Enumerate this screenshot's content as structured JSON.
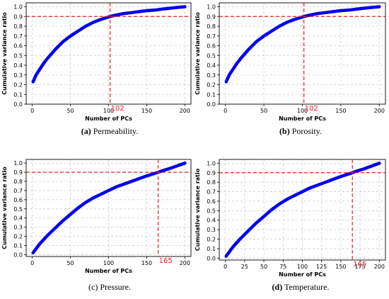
{
  "chart_data": [
    {
      "type": "line",
      "panel_label": "(a)",
      "caption": "Permeability.",
      "xlabel": "Number of PCs",
      "ylabel": "Cumulative variance ratio",
      "xlim": [
        -8,
        208
      ],
      "ylim": [
        0,
        1.04
      ],
      "xticks": [
        "0",
        "50",
        "100",
        "150",
        "200"
      ],
      "yticks": [
        "0.0",
        "0.1",
        "0.2",
        "0.3",
        "0.4",
        "0.5",
        "0.6",
        "0.7",
        "0.8",
        "0.9",
        "1.0"
      ],
      "grid": true,
      "threshold_y": 0.9,
      "threshold_x": 102,
      "threshold_x_label": "102",
      "series": [
        {
          "color": "#0000ee",
          "x": [
            1,
            5,
            10,
            15,
            20,
            30,
            40,
            50,
            60,
            70,
            80,
            90,
            102,
            110,
            120,
            130,
            140,
            150,
            160,
            170,
            180,
            190,
            200
          ],
          "values": [
            0.23,
            0.3,
            0.36,
            0.42,
            0.47,
            0.56,
            0.64,
            0.7,
            0.75,
            0.8,
            0.84,
            0.87,
            0.9,
            0.915,
            0.93,
            0.94,
            0.95,
            0.96,
            0.965,
            0.975,
            0.985,
            0.993,
            1.0
          ]
        }
      ]
    },
    {
      "type": "line",
      "panel_label": "(b)",
      "caption": "Porosity.",
      "xlabel": "Number of PCs",
      "ylabel": "Cumulative variance ratio",
      "xlim": [
        -8,
        208
      ],
      "ylim": [
        0,
        1.04
      ],
      "xticks": [
        "0",
        "50",
        "100",
        "150",
        "200"
      ],
      "yticks": [
        "0.0",
        "0.1",
        "0.2",
        "0.3",
        "0.4",
        "0.5",
        "0.6",
        "0.7",
        "0.8",
        "0.9",
        "1.0"
      ],
      "grid": true,
      "threshold_y": 0.9,
      "threshold_x": 102,
      "threshold_x_label": "102",
      "series": [
        {
          "color": "#0000ee",
          "x": [
            1,
            5,
            10,
            15,
            20,
            30,
            40,
            50,
            60,
            70,
            80,
            90,
            102,
            110,
            120,
            130,
            140,
            150,
            160,
            170,
            180,
            190,
            200
          ],
          "values": [
            0.23,
            0.3,
            0.36,
            0.42,
            0.47,
            0.56,
            0.64,
            0.7,
            0.75,
            0.8,
            0.84,
            0.87,
            0.9,
            0.915,
            0.93,
            0.94,
            0.95,
            0.96,
            0.965,
            0.975,
            0.985,
            0.993,
            1.0
          ]
        }
      ]
    },
    {
      "type": "line",
      "panel_label": "(c)",
      "caption": "Pressure.",
      "xlabel": "Number of PCs",
      "ylabel": "Cumulative variance ratio",
      "xlim": [
        -8,
        208
      ],
      "ylim": [
        -0.02,
        1.04
      ],
      "xticks": [
        "0",
        "50",
        "100",
        "150",
        "200"
      ],
      "yticks": [
        "0.0",
        "0.1",
        "0.2",
        "0.3",
        "0.4",
        "0.5",
        "0.6",
        "0.7",
        "0.8",
        "0.9",
        "1.0"
      ],
      "grid": true,
      "threshold_y": 0.9,
      "threshold_x": 165,
      "threshold_x_label": "165",
      "series": [
        {
          "color": "#0000ee",
          "x": [
            1,
            10,
            20,
            30,
            40,
            50,
            60,
            70,
            80,
            90,
            100,
            110,
            120,
            130,
            140,
            150,
            165,
            170,
            180,
            190,
            200
          ],
          "values": [
            0.02,
            0.12,
            0.21,
            0.29,
            0.37,
            0.44,
            0.51,
            0.57,
            0.62,
            0.66,
            0.7,
            0.74,
            0.77,
            0.8,
            0.83,
            0.86,
            0.9,
            0.915,
            0.94,
            0.97,
            1.0
          ]
        }
      ]
    },
    {
      "type": "line",
      "panel_label": "(d)",
      "caption": "Temperature.",
      "xlabel": "Number of PCs",
      "ylabel": "Cumulative variance ratio",
      "xlim": [
        -8,
        208
      ],
      "ylim": [
        -0.02,
        1.04
      ],
      "xticks": [
        "0",
        "25",
        "50",
        "75",
        "100",
        "125",
        "150",
        "175",
        "200"
      ],
      "yticks": [
        "0.0",
        "0.1",
        "0.2",
        "0.3",
        "0.4",
        "0.5",
        "0.6",
        "0.7",
        "0.8",
        "0.9",
        "1.0"
      ],
      "grid": true,
      "threshold_y": 0.9,
      "threshold_x": 165,
      "threshold_x_label": "165",
      "series": [
        {
          "color": "#0000ee",
          "x": [
            1,
            10,
            20,
            30,
            40,
            50,
            60,
            70,
            80,
            90,
            100,
            110,
            120,
            130,
            140,
            150,
            165,
            170,
            180,
            190,
            200
          ],
          "values": [
            0.02,
            0.12,
            0.21,
            0.29,
            0.37,
            0.44,
            0.51,
            0.57,
            0.62,
            0.66,
            0.7,
            0.74,
            0.77,
            0.8,
            0.83,
            0.86,
            0.9,
            0.915,
            0.94,
            0.97,
            1.0
          ]
        }
      ]
    }
  ],
  "colors": {
    "series": "#0000ee",
    "threshold": "#e02020",
    "grid": "#cccccc"
  }
}
